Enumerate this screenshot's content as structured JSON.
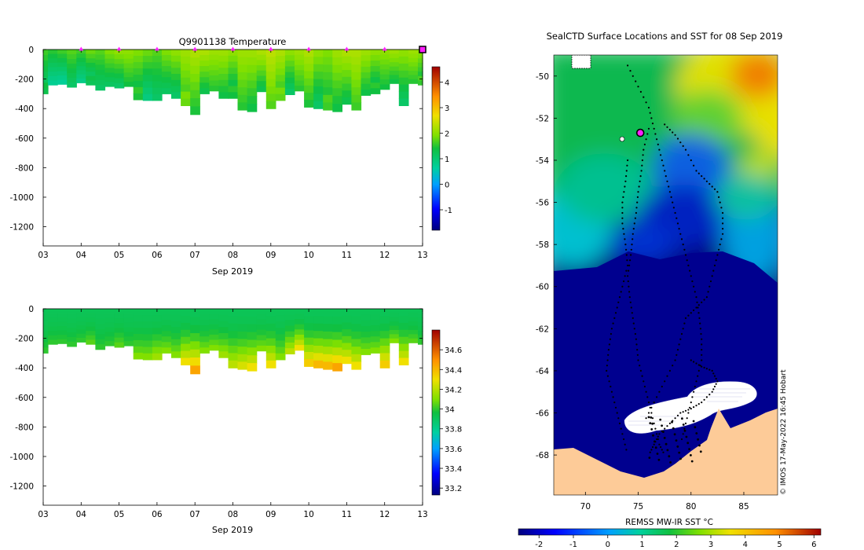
{
  "chart_data": [
    {
      "type": "heatmap",
      "title": "Q9901138  Temperature",
      "x_ticks": [
        "03",
        "04",
        "05",
        "06",
        "07",
        "08",
        "09",
        "10",
        "11",
        "12",
        "13"
      ],
      "xlabel": "Sep 2019",
      "y_ticks": [
        "0",
        "-200",
        "-400",
        "-600",
        "-800",
        "-1000",
        "-1200"
      ],
      "ylim": [
        -1330,
        0
      ],
      "colorbar_ticks": [
        "4",
        "3",
        "2",
        "1",
        "0",
        "-1"
      ],
      "colorbar_range": [
        -1.8,
        4.6
      ],
      "profile_days": [
        3.0,
        3.25,
        3.5,
        3.75,
        4.0,
        4.25,
        4.5,
        4.75,
        5.0,
        5.25,
        5.5,
        5.75,
        6.0,
        6.25,
        6.5,
        6.75,
        7.0,
        7.25,
        7.5,
        7.75,
        8.0,
        8.25,
        8.5,
        8.75,
        9.0,
        9.25,
        9.5,
        9.75,
        10.0,
        10.25,
        10.5,
        10.75,
        11.0,
        11.25,
        11.5,
        11.75,
        12.0,
        12.25,
        12.5,
        12.75,
        13.0
      ],
      "profile_max_depth": [
        -300,
        -240,
        -235,
        -255,
        -225,
        -240,
        -275,
        -250,
        -260,
        -250,
        -340,
        -345,
        -345,
        -300,
        -330,
        -380,
        -440,
        -300,
        -280,
        -330,
        -330,
        -410,
        -420,
        -285,
        -400,
        -345,
        -305,
        -280,
        -390,
        -400,
        -410,
        -420,
        -370,
        -410,
        -310,
        -300,
        -270,
        -230,
        -380,
        -230,
        -240
      ],
      "surface_temp": [
        1.6,
        1.5,
        1.6,
        1.7,
        1.6,
        1.8,
        1.7,
        1.9,
        2.0,
        2.0,
        1.9,
        1.8,
        1.7,
        1.9,
        2.0,
        2.1,
        2.2,
        2.2,
        2.1,
        2.1,
        2.0,
        2.1,
        2.1,
        2.2,
        2.3,
        2.2,
        2.0,
        2.1,
        2.2,
        2.0,
        1.9,
        2.1,
        2.2,
        2.2,
        2.1,
        2.0,
        2.0,
        2.1,
        2.0,
        2.1,
        2.0
      ],
      "markers_days": [
        4,
        5,
        6,
        7,
        8,
        9,
        10,
        11,
        12
      ]
    },
    {
      "type": "heatmap",
      "title": "",
      "x_ticks": [
        "03",
        "04",
        "05",
        "06",
        "07",
        "08",
        "09",
        "10",
        "11",
        "12",
        "13"
      ],
      "xlabel": "Sep 2019",
      "y_ticks": [
        "0",
        "-200",
        "-400",
        "-600",
        "-800",
        "-1000",
        "-1200"
      ],
      "ylim": [
        -1330,
        0
      ],
      "colorbar_ticks": [
        "34.6",
        "34.4",
        "34.2",
        "34",
        "33.8",
        "33.6",
        "33.4",
        "33.2"
      ],
      "colorbar_range": [
        33.13,
        34.8
      ],
      "profile_days": [
        3.0,
        3.25,
        3.5,
        3.75,
        4.0,
        4.25,
        4.5,
        4.75,
        5.0,
        5.25,
        5.5,
        5.75,
        6.0,
        6.25,
        6.5,
        6.75,
        7.0,
        7.25,
        7.5,
        7.75,
        8.0,
        8.25,
        8.5,
        8.75,
        9.0,
        9.25,
        9.5,
        9.75,
        10.0,
        10.25,
        10.5,
        10.75,
        11.0,
        11.25,
        11.5,
        11.75,
        12.0,
        12.25,
        12.5,
        12.75,
        13.0
      ],
      "profile_max_depth": [
        -300,
        -240,
        -235,
        -255,
        -225,
        -240,
        -275,
        -250,
        -260,
        -250,
        -340,
        -345,
        -345,
        -300,
        -330,
        -380,
        -440,
        -300,
        -280,
        -330,
        -400,
        -410,
        -420,
        -285,
        -400,
        -345,
        -305,
        -280,
        -390,
        -400,
        -410,
        -420,
        -370,
        -410,
        -310,
        -300,
        -400,
        -230,
        -380,
        -230,
        -240
      ],
      "deep_salinity": [
        34.0,
        34.0,
        34.0,
        34.0,
        34.0,
        34.05,
        34.0,
        34.0,
        34.05,
        34.0,
        34.1,
        34.1,
        34.15,
        34.1,
        34.1,
        34.3,
        34.45,
        34.1,
        34.1,
        34.15,
        34.2,
        34.25,
        34.3,
        34.1,
        34.3,
        34.1,
        34.2,
        34.3,
        34.35,
        34.4,
        34.4,
        34.45,
        34.3,
        34.3,
        34.1,
        34.1,
        34.35,
        34.1,
        34.3,
        34.05,
        34.0
      ]
    },
    {
      "type": "heatmap",
      "title": "SealCTD Surface Locations and SST for 08 Sep 2019",
      "x_ticks": [
        "70",
        "75",
        "80",
        "85"
      ],
      "xlim": [
        67,
        88.2
      ],
      "y_ticks": [
        "-50",
        "-52",
        "-54",
        "-56",
        "-58",
        "-60",
        "-62",
        "-64",
        "-66",
        "-68"
      ],
      "ylim": [
        -69.9,
        -49.0
      ],
      "colorbar_label": "REMSS MW-IR SST °C",
      "colorbar_ticks": [
        "-2",
        "-1",
        "0",
        "1",
        "2",
        "3",
        "4",
        "5",
        "6"
      ],
      "colorbar_range": [
        -2.6,
        6.2
      ],
      "current_position": [
        75.2,
        -52.7
      ],
      "watermark": "© IMOS 17-May-2022 16:45 Hobart"
    }
  ]
}
